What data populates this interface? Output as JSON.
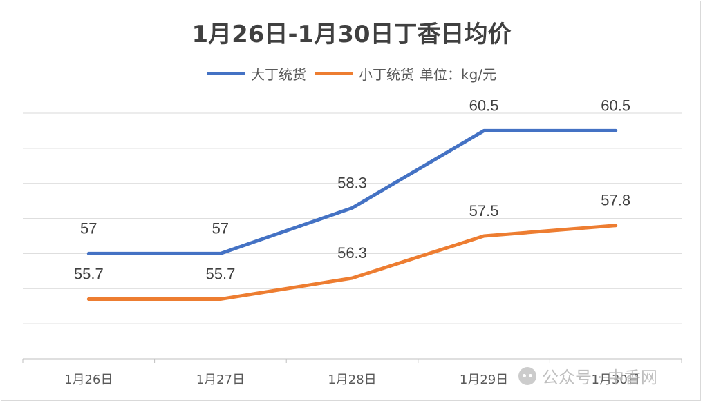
{
  "chart_data": {
    "type": "line",
    "title": "1月26日-1月30日丁香日均价",
    "categories": [
      "1月26日",
      "1月27日",
      "1月28日",
      "1月29日",
      "1月30日"
    ],
    "series": [
      {
        "name": "大丁统货",
        "values": [
          57,
          57,
          58.3,
          60.5,
          60.5
        ],
        "color": "#4472C4"
      },
      {
        "name": "小丁统货",
        "values": [
          55.7,
          55.7,
          56.3,
          57.5,
          57.8
        ],
        "color": "#ED7D31"
      }
    ],
    "unit_label": "单位：kg/元",
    "ylim": [
      54,
      61
    ],
    "y_tick_step": 1,
    "grid": true,
    "legend_position": "top",
    "data_labels": true
  },
  "watermark": {
    "text": "公众号 · 中香网"
  }
}
